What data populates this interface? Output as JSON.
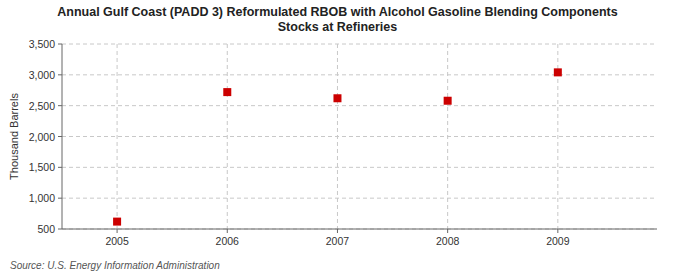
{
  "chart_data": {
    "type": "scatter",
    "title": "Annual Gulf Coast (PADD 3) Reformulated RBOB with Alcohol Gasoline Blending Components\nStocks at Refineries",
    "y_label": "Thousand Barrels",
    "source": "Source: U.S. Energy Information Administration",
    "x": [
      2005,
      2006,
      2007,
      2008,
      2009
    ],
    "values": [
      620,
      2720,
      2620,
      2580,
      3040
    ],
    "color": "#cc0000",
    "marker": "square",
    "xlim": [
      2004.5,
      2009.9
    ],
    "ylim": [
      500,
      3500
    ],
    "xticks": [
      2005,
      2006,
      2007,
      2008,
      2009
    ],
    "yticks": [
      500,
      {
        "value": 1000,
        "label": "1,000"
      },
      {
        "value": 1500,
        "label": "1,500"
      },
      {
        "value": 2000,
        "label": "2,000"
      },
      {
        "value": 2500,
        "label": "2,500"
      },
      {
        "value": 3000,
        "label": "3,000"
      },
      {
        "value": 3500,
        "label": "3,500"
      }
    ],
    "grid": true
  }
}
